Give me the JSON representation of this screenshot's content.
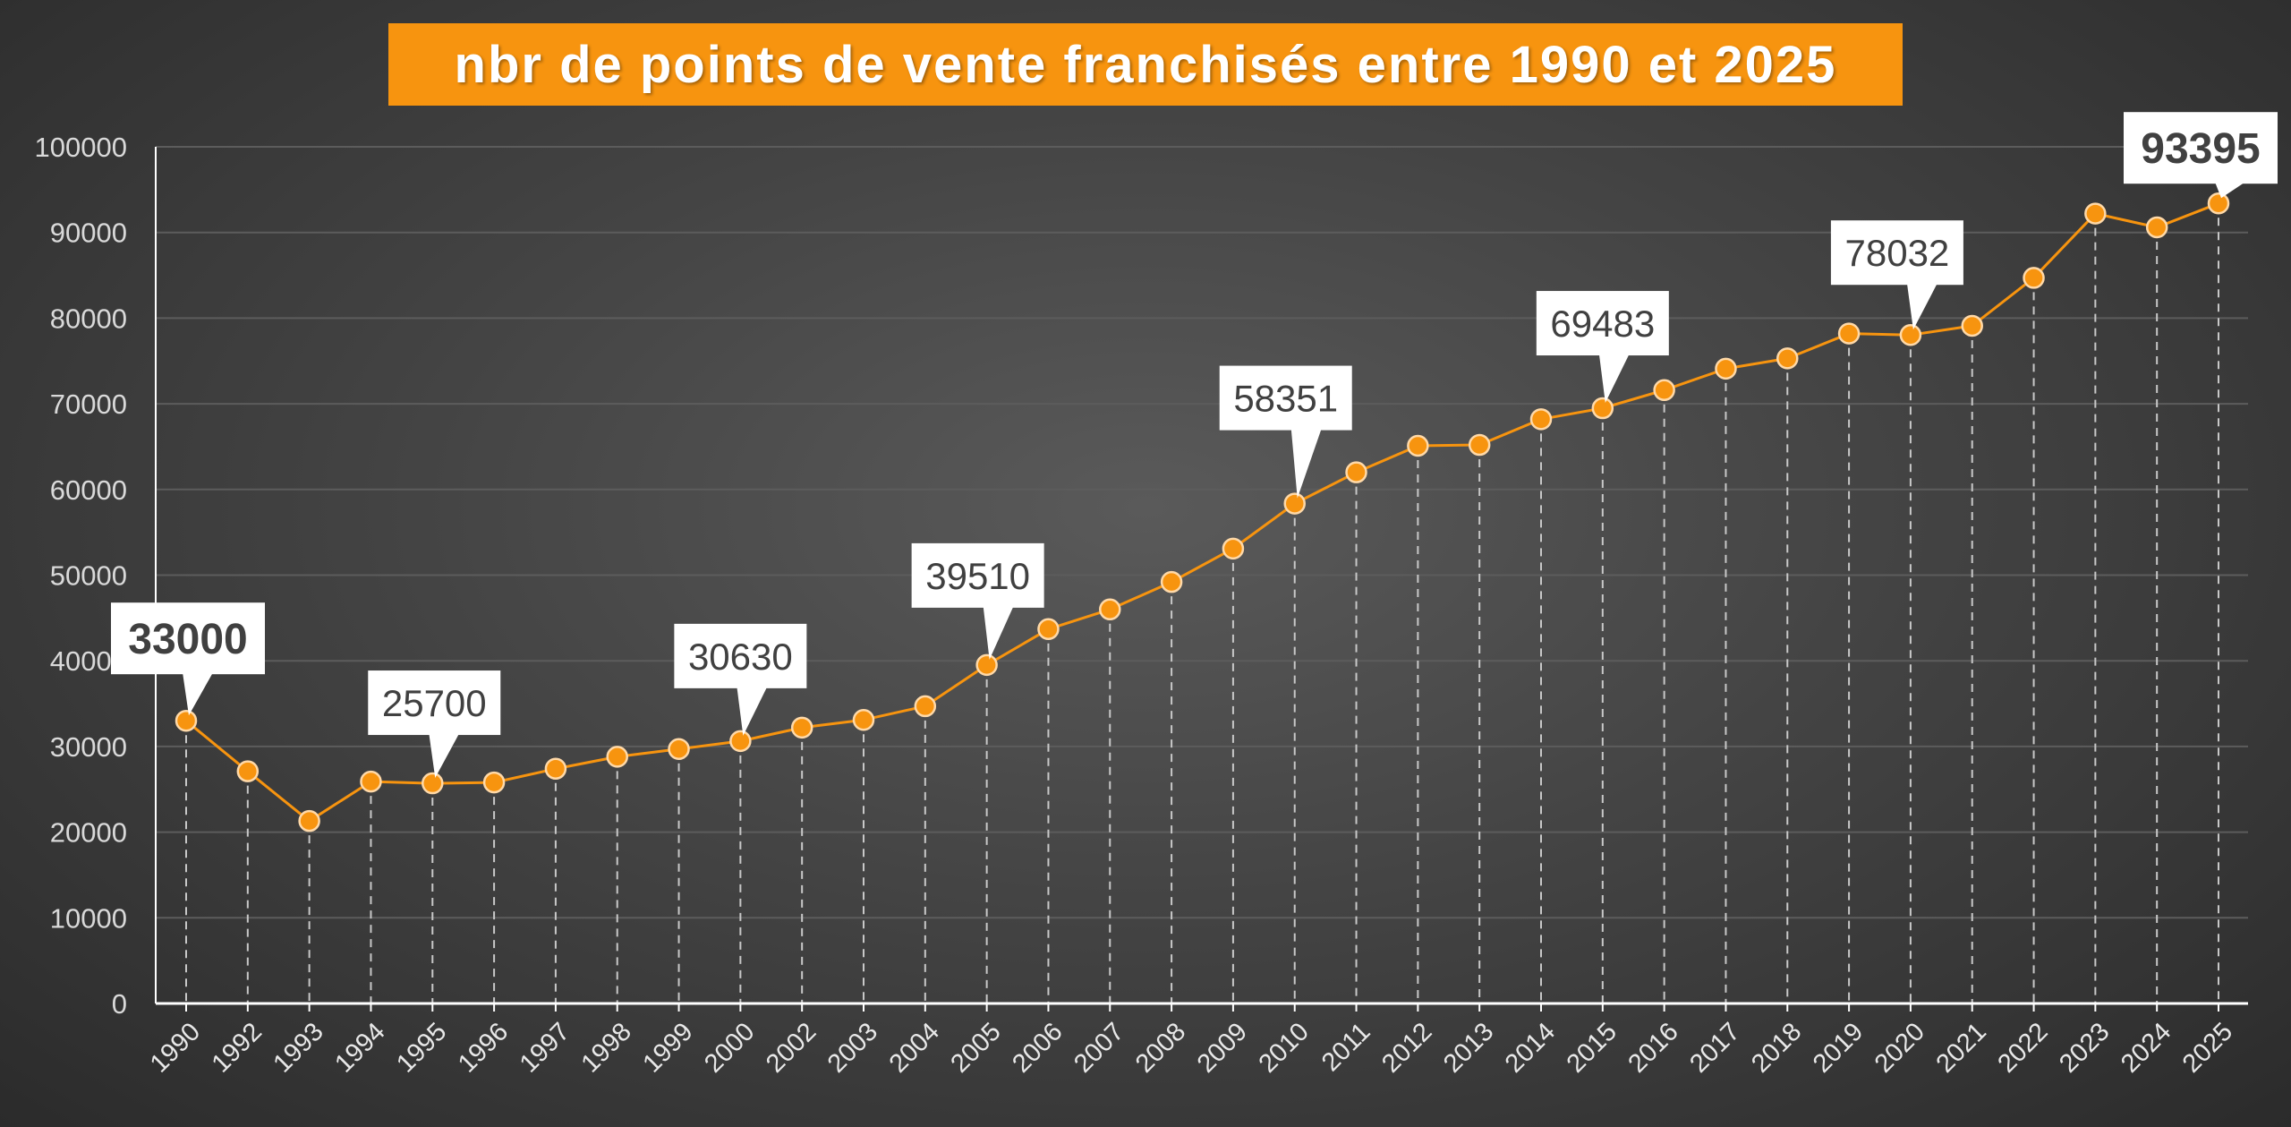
{
  "title": "nbr de points de vente franchisés entre 1990 et 2025",
  "colors": {
    "accent": "#f7940f",
    "line": "#f7940f",
    "grid": "#5c5c5c",
    "dropline": "#c8c8c8",
    "axis": "#ffffff",
    "callout_bg": "#ffffff",
    "callout_text": "#404040"
  },
  "chart_data": {
    "type": "line",
    "title": "nbr de points de vente franchisés entre 1990 et 2025",
    "xlabel": "",
    "ylabel": "",
    "ylim": [
      0,
      100000
    ],
    "yticks": [
      0,
      10000,
      20000,
      30000,
      40000,
      50000,
      60000,
      70000,
      80000,
      90000,
      100000
    ],
    "grid": true,
    "drop_lines": true,
    "markers": true,
    "categories": [
      "1990",
      "1992",
      "1993",
      "1994",
      "1995",
      "1996",
      "1997",
      "1998",
      "1999",
      "2000",
      "2002",
      "2003",
      "2004",
      "2005",
      "2006",
      "2007",
      "2008",
      "2009",
      "2010",
      "2011",
      "2012",
      "2013",
      "2014",
      "2015",
      "2016",
      "2017",
      "2018",
      "2019",
      "2020",
      "2021",
      "2022",
      "2023",
      "2024",
      "2025"
    ],
    "series": [
      {
        "values": [
          33000,
          27100,
          21300,
          25900,
          25700,
          25800,
          27400,
          28800,
          29700,
          30630,
          32200,
          33100,
          34700,
          39510,
          43700,
          46000,
          49200,
          53100,
          58351,
          62000,
          65100,
          65200,
          68200,
          69483,
          71600,
          74100,
          75300,
          78200,
          78032,
          79100,
          84700,
          92200,
          90600,
          93395
        ]
      }
    ],
    "annotations": [
      {
        "category": "1990",
        "label": "33000",
        "bold": true
      },
      {
        "category": "1995",
        "label": "25700",
        "bold": false
      },
      {
        "category": "2000",
        "label": "30630",
        "bold": false
      },
      {
        "category": "2005",
        "label": "39510",
        "bold": false
      },
      {
        "category": "2010",
        "label": "58351",
        "bold": false
      },
      {
        "category": "2015",
        "label": "69483",
        "bold": false
      },
      {
        "category": "2020",
        "label": "78032",
        "bold": false
      },
      {
        "category": "2025",
        "label": "93395",
        "bold": true
      }
    ]
  }
}
